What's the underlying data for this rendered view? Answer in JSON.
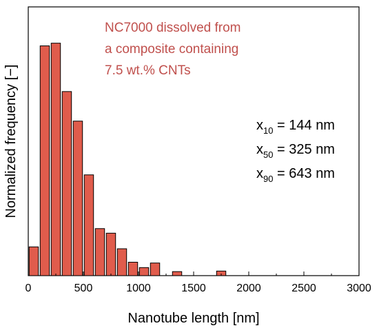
{
  "chart_data": {
    "type": "bar",
    "xlabel": "Nanotube length [nm]",
    "ylabel": "Normalized frequency [−]",
    "xlim": [
      0,
      3000
    ],
    "ylim": [
      0,
      1.0
    ],
    "xticks": [
      0,
      500,
      1000,
      1500,
      2000,
      2500,
      3000
    ],
    "xtick_labels": [
      "0",
      "500",
      "1000",
      "1500",
      "2000",
      "2500",
      "3000"
    ],
    "y_tick_labels_shown": false,
    "bar_width": 100,
    "bin_centers": [
      50,
      150,
      250,
      350,
      450,
      550,
      650,
      750,
      850,
      950,
      1050,
      1150,
      1350,
      1750
    ],
    "values": [
      0.107,
      0.855,
      0.865,
      0.685,
      0.575,
      0.375,
      0.175,
      0.158,
      0.1,
      0.05,
      0.03,
      0.047,
      0.015,
      0.017
    ],
    "bar_color": "#e05c4c",
    "bar_edge_color": "#000000",
    "grid": false,
    "annotation": {
      "lines": [
        "NC7000 dissolved from",
        "a composite containing",
        "7.5 wt.% CNTs"
      ],
      "color": "#c0504d"
    },
    "stats": [
      {
        "symbol": "x",
        "sub": "10",
        "text": " = 144 nm"
      },
      {
        "symbol": "x",
        "sub": "50",
        "text": " = 325 nm"
      },
      {
        "symbol": "x",
        "sub": "90",
        "text": " = 643 nm"
      }
    ]
  }
}
